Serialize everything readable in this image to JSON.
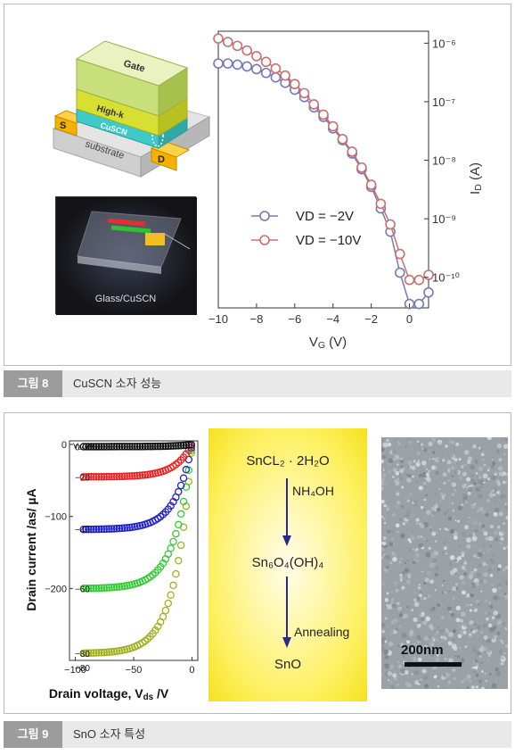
{
  "figure8": {
    "caption_num": "그림 8",
    "caption_text": "CuSCN 소자 성능",
    "device": {
      "gate_label": "Gate",
      "highk_label": "High-k",
      "cuscn_label": "CuSCN",
      "substrate_label": "substrate",
      "source_label": "S",
      "drain_label": "D"
    },
    "photo_label": "Glass/CuSCN"
  },
  "figure9": {
    "caption_num": "그림 9",
    "caption_text": "SnO 소자 특성",
    "scheme": {
      "step1": "SnCL₂ · 2H₂O",
      "arrow1": "NH₄OH",
      "step2": "Sn₆O₄(OH)₄",
      "arrow2": "Annealing",
      "step3": "SnO"
    },
    "scale_bar_label": "200nm"
  },
  "chart_data": [
    {
      "type": "line",
      "xlabel": "VG (V)",
      "ylabel": "ID (A)",
      "scale": "log",
      "xlim": [
        -10,
        1
      ],
      "ylim": [
        3e-11,
        1.6e-06
      ],
      "xticks": [
        "−10",
        "−8",
        "−6",
        "−4",
        "−2",
        "0"
      ],
      "yticks": [
        "10⁻⁶",
        "10⁻⁷",
        "10⁻⁸",
        "10⁻⁹",
        "10⁻¹⁰"
      ],
      "legend_position": "center-left",
      "series": [
        {
          "name": "VD = −2V",
          "color": "#7878b8",
          "x": [
            -10,
            -9.5,
            -9,
            -8.5,
            -8,
            -7.5,
            -7,
            -6.5,
            -6,
            -5.5,
            -5,
            -4.5,
            -4,
            -3.5,
            -3,
            -2.5,
            -2,
            -1.5,
            -1,
            -0.5,
            0,
            0.5,
            1
          ],
          "y": [
            4.5e-07,
            4.5e-07,
            4.3e-07,
            4e-07,
            3.6e-07,
            3.1e-07,
            2.6e-07,
            2.1e-07,
            1.6e-07,
            1.2e-07,
            8e-08,
            5.5e-08,
            3.5e-08,
            2.2e-08,
            1.3e-08,
            7e-09,
            3.5e-09,
            1.5e-09,
            6e-10,
            1.2e-10,
            3.5e-11,
            3.5e-11,
            5.5e-11
          ]
        },
        {
          "name": "VD = −10V",
          "color": "#c87070",
          "x": [
            -10,
            -9.5,
            -9,
            -8.5,
            -8,
            -7.5,
            -7,
            -6.5,
            -6,
            -5.5,
            -5,
            -4.5,
            -4,
            -3.5,
            -3,
            -2.5,
            -2,
            -1.5,
            -1,
            -0.5,
            0,
            0.5,
            1
          ],
          "y": [
            1.2e-06,
            1.05e-06,
            9e-07,
            7.5e-07,
            6e-07,
            4.8e-07,
            3.7e-07,
            2.8e-07,
            2e-07,
            1.4e-07,
            9e-08,
            6e-08,
            3.8e-08,
            2.3e-08,
            1.4e-08,
            7.5e-09,
            3.8e-09,
            1.8e-09,
            8e-10,
            2.5e-10,
            9e-11,
            9e-11,
            1.1e-10
          ]
        }
      ]
    },
    {
      "type": "line",
      "xlabel": "Drain voltage, Vds /V",
      "ylabel": "Drain current /as/ µA",
      "xlim": [
        -105,
        5
      ],
      "ylim": [
        -300,
        5
      ],
      "xticks": [
        "−100",
        "−50",
        "0"
      ],
      "yticks": [
        "−200",
        "−100",
        "0"
      ],
      "legend_title": "Vds /V",
      "series": [
        {
          "name": "−80",
          "color": "#a0b020",
          "saturation": -290
        },
        {
          "name": "−60",
          "color": "#33cc33",
          "saturation": -200
        },
        {
          "name": "−40",
          "color": "#2222cc",
          "saturation": -118
        },
        {
          "name": "−20",
          "color": "#ee2222",
          "saturation": -45
        },
        {
          "name": "0",
          "color": "#111111",
          "saturation": -3
        }
      ],
      "extra_labels": [
        "−80"
      ]
    }
  ]
}
